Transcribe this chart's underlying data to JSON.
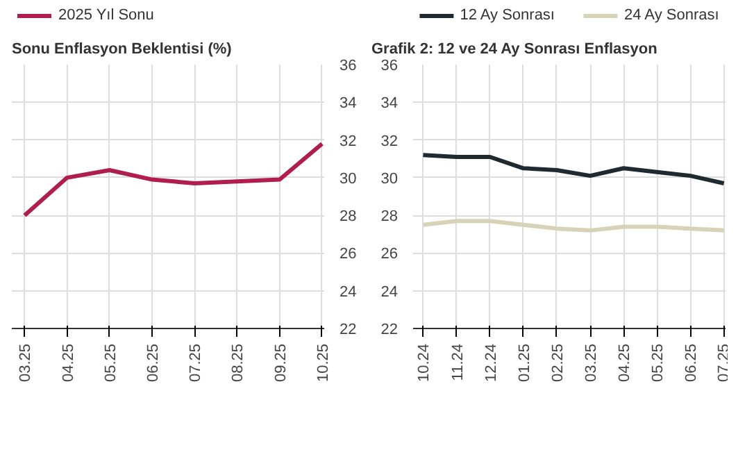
{
  "chart_data": [
    {
      "type": "line",
      "title": "Sonu Enflasyon Beklentisi (%)",
      "categories": [
        "03.25",
        "04.25",
        "05.25",
        "06.25",
        "07.25",
        "08.25",
        "09.25",
        "10.25"
      ],
      "series": [
        {
          "name": "2025 Yıl Sonu",
          "color": "#b01e4f",
          "values": [
            28.0,
            30.0,
            30.4,
            29.9,
            29.7,
            29.8,
            29.9,
            31.8
          ]
        }
      ],
      "ylim": [
        22,
        36
      ],
      "yticks": [
        22,
        24,
        26,
        28,
        30,
        32,
        34,
        36
      ],
      "grid": true,
      "legend": "top left"
    },
    {
      "type": "line",
      "title": "Grafik 2: 12 ve 24 Ay Sonrası Enflasyon",
      "categories": [
        "10.24",
        "11.24",
        "12.24",
        "01.25",
        "02.25",
        "03.25",
        "04.25",
        "05.25",
        "06.25",
        "07.25"
      ],
      "series": [
        {
          "name": "12 Ay Sonrası",
          "color": "#1f2a30",
          "values": [
            31.2,
            31.1,
            31.1,
            30.5,
            30.4,
            30.1,
            30.5,
            30.3,
            30.1,
            29.7
          ]
        },
        {
          "name": "24 Ay Sonrası",
          "color": "#d6d3b8",
          "values": [
            27.5,
            27.7,
            27.7,
            27.5,
            27.3,
            27.2,
            27.4,
            27.4,
            27.3,
            27.2
          ]
        }
      ],
      "ylim": [
        22,
        36
      ],
      "yticks": [
        22,
        24,
        26,
        28,
        30,
        32,
        34,
        36
      ],
      "grid": true,
      "legend": "top"
    }
  ]
}
